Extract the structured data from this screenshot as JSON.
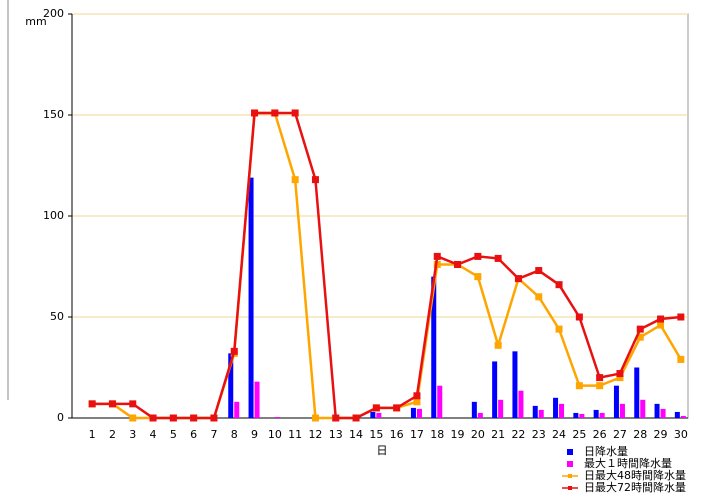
{
  "chart_data": {
    "type": "bar_line",
    "y_unit": "mm",
    "x_label": "日",
    "categories": [
      "1",
      "2",
      "3",
      "4",
      "5",
      "6",
      "7",
      "8",
      "9",
      "10",
      "11",
      "12",
      "13",
      "14",
      "15",
      "16",
      "17",
      "18",
      "19",
      "20",
      "21",
      "22",
      "23",
      "24",
      "25",
      "26",
      "27",
      "28",
      "29",
      "30"
    ],
    "ylim": [
      0,
      200
    ],
    "yticks": [
      0,
      50,
      100,
      150,
      200
    ],
    "grid": true,
    "series": [
      {
        "name": "日降水量",
        "kind": "bar",
        "color": "#0000ff",
        "values": [
          0,
          0,
          0,
          0,
          0,
          0,
          0,
          32,
          119,
          0,
          0,
          0,
          0,
          0,
          3,
          0,
          5,
          70,
          0,
          8,
          28,
          33,
          6,
          10,
          2.5,
          4,
          16,
          25,
          7,
          3
        ]
      },
      {
        "name": "最大１時間降水量",
        "kind": "bar",
        "color": "#ff00ff",
        "values": [
          0,
          0,
          0,
          0,
          0,
          0,
          0,
          8,
          18,
          0.5,
          0,
          0,
          0,
          0,
          2.5,
          0,
          4.5,
          16,
          0,
          2.5,
          9,
          13.5,
          4,
          7,
          2,
          2.5,
          7,
          9,
          4.5,
          1
        ]
      },
      {
        "name": "日最大48時間降水量",
        "kind": "line",
        "color": "#ffa500",
        "values": [
          7,
          7,
          0,
          0,
          0,
          0,
          0,
          32,
          151,
          151,
          118,
          0,
          0,
          0,
          5,
          5,
          8,
          76,
          76,
          70,
          36,
          69,
          60,
          44,
          16,
          16,
          20,
          40,
          46,
          29
        ]
      },
      {
        "name": "日最大72時間降水量",
        "kind": "line",
        "color": "#e81010",
        "values": [
          7,
          7,
          7,
          0,
          0,
          0,
          0,
          33,
          151,
          151,
          151,
          118,
          0,
          0,
          5,
          5,
          11,
          80,
          76,
          80,
          79,
          69,
          73,
          66,
          50,
          20,
          22,
          44,
          49,
          50
        ]
      }
    ]
  }
}
